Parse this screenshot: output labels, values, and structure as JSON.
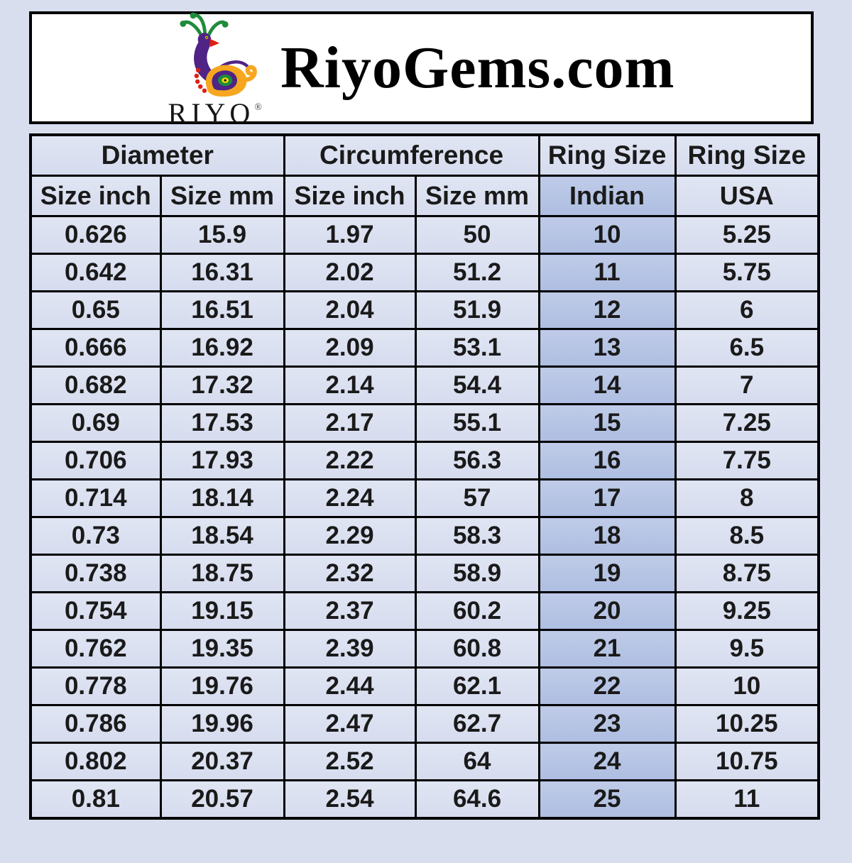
{
  "header": {
    "title": "RiyoGems.com",
    "logo": {
      "brand": "RIYO",
      "registered_mark": "®"
    }
  },
  "chart_data": {
    "type": "table",
    "title": "RiyoGems.com",
    "column_groups": [
      {
        "label": "Diameter",
        "span": 2
      },
      {
        "label": "Circumference",
        "span": 2
      },
      {
        "label": "Ring Size",
        "span": 1
      },
      {
        "label": "Ring Size",
        "span": 1
      }
    ],
    "columns": [
      "Size inch",
      "Size mm",
      "Size inch",
      "Size mm",
      "Indian",
      "USA"
    ],
    "highlighted_column": "Indian",
    "rows": [
      [
        "0.626",
        "15.9",
        "1.97",
        "50",
        "10",
        "5.25"
      ],
      [
        "0.642",
        "16.31",
        "2.02",
        "51.2",
        "11",
        "5.75"
      ],
      [
        "0.65",
        "16.51",
        "2.04",
        "51.9",
        "12",
        "6"
      ],
      [
        "0.666",
        "16.92",
        "2.09",
        "53.1",
        "13",
        "6.5"
      ],
      [
        "0.682",
        "17.32",
        "2.14",
        "54.4",
        "14",
        "7"
      ],
      [
        "0.69",
        "17.53",
        "2.17",
        "55.1",
        "15",
        "7.25"
      ],
      [
        "0.706",
        "17.93",
        "2.22",
        "56.3",
        "16",
        "7.75"
      ],
      [
        "0.714",
        "18.14",
        "2.24",
        "57",
        "17",
        "8"
      ],
      [
        "0.73",
        "18.54",
        "2.29",
        "58.3",
        "18",
        "8.5"
      ],
      [
        "0.738",
        "18.75",
        "2.32",
        "58.9",
        "19",
        "8.75"
      ],
      [
        "0.754",
        "19.15",
        "2.37",
        "60.2",
        "20",
        "9.25"
      ],
      [
        "0.762",
        "19.35",
        "2.39",
        "60.8",
        "21",
        "9.5"
      ],
      [
        "0.778",
        "19.76",
        "2.44",
        "62.1",
        "22",
        "10"
      ],
      [
        "0.786",
        "19.96",
        "2.47",
        "62.7",
        "23",
        "10.25"
      ],
      [
        "0.802",
        "20.37",
        "2.52",
        "64",
        "24",
        "10.75"
      ],
      [
        "0.81",
        "20.57",
        "2.54",
        "64.6",
        "25",
        "11"
      ]
    ]
  },
  "colors": {
    "page_bg": "#d9deef",
    "header_box_bg": "#ffffff",
    "cell_bg": "#dbe1f0",
    "highlight_col_bg": "#b6c4e3",
    "border": "#000000",
    "logo_purple": "#4f2486",
    "logo_orange": "#f6a71f",
    "logo_green": "#1f8c3b",
    "logo_red": "#e02010",
    "logo_yellow": "#ffe000"
  }
}
